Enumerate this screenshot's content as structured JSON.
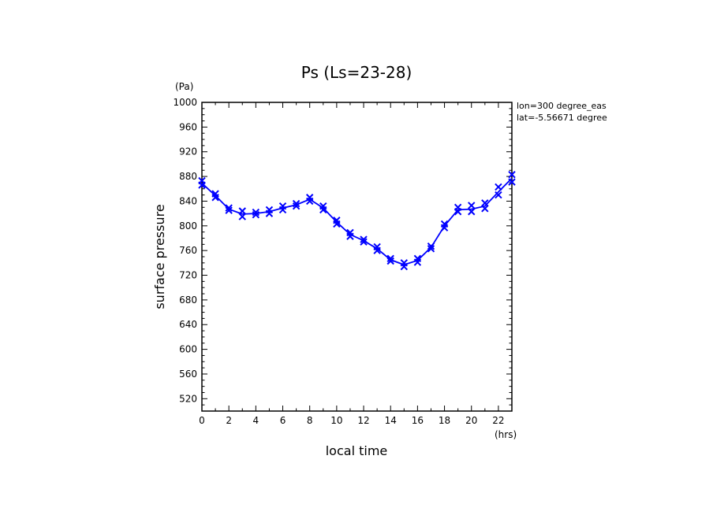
{
  "chart_data": {
    "type": "line",
    "title": "Ps (Ls=23-28)",
    "xlabel": "local time",
    "ylabel": "surface pressure",
    "x_unit": "(hrs)",
    "y_unit": "(Pa)",
    "annotations": [
      "lon=300 degree_eas",
      "lat=-5.56671 degree"
    ],
    "xlim": [
      0,
      23
    ],
    "ylim": [
      500,
      1000
    ],
    "x_ticks": [
      0,
      2,
      4,
      6,
      8,
      10,
      12,
      14,
      16,
      18,
      20,
      22
    ],
    "y_ticks": [
      520,
      560,
      600,
      640,
      680,
      720,
      760,
      800,
      840,
      880,
      920,
      960,
      1000
    ],
    "grid": false,
    "line_color": "#0000ff",
    "x": [
      0,
      1,
      2,
      3,
      4,
      5,
      6,
      7,
      8,
      9,
      10,
      11,
      12,
      13,
      14,
      15,
      16,
      17,
      18,
      19,
      20,
      21,
      22,
      23
    ],
    "series": [
      {
        "values": [
          869,
          849,
          827,
          819,
          820,
          823,
          829,
          834,
          843,
          829,
          806,
          786,
          776,
          763,
          745,
          737,
          744,
          765,
          800,
          826,
          827,
          832,
          855,
          877
        ]
      }
    ],
    "scatter_points": [
      [
        0,
        873
      ],
      [
        0,
        866
      ],
      [
        1,
        852
      ],
      [
        1,
        846
      ],
      [
        2,
        829
      ],
      [
        2,
        825
      ],
      [
        3,
        824
      ],
      [
        3,
        815
      ],
      [
        4,
        822
      ],
      [
        4,
        818
      ],
      [
        5,
        826
      ],
      [
        5,
        820
      ],
      [
        6,
        832
      ],
      [
        6,
        826
      ],
      [
        7,
        836
      ],
      [
        7,
        832
      ],
      [
        8,
        846
      ],
      [
        8,
        840
      ],
      [
        9,
        832
      ],
      [
        9,
        826
      ],
      [
        10,
        809
      ],
      [
        10,
        803
      ],
      [
        11,
        789
      ],
      [
        11,
        783
      ],
      [
        12,
        778
      ],
      [
        12,
        774
      ],
      [
        13,
        766
      ],
      [
        13,
        760
      ],
      [
        14,
        747
      ],
      [
        14,
        743
      ],
      [
        15,
        740
      ],
      [
        15,
        734
      ],
      [
        16,
        747
      ],
      [
        16,
        741
      ],
      [
        17,
        767
      ],
      [
        17,
        763
      ],
      [
        18,
        803
      ],
      [
        18,
        797
      ],
      [
        19,
        830
      ],
      [
        19,
        823
      ],
      [
        20,
        833
      ],
      [
        20,
        823
      ],
      [
        21,
        837
      ],
      [
        21,
        828
      ],
      [
        22,
        863
      ],
      [
        22,
        850
      ],
      [
        23,
        883
      ],
      [
        23,
        871
      ]
    ]
  }
}
